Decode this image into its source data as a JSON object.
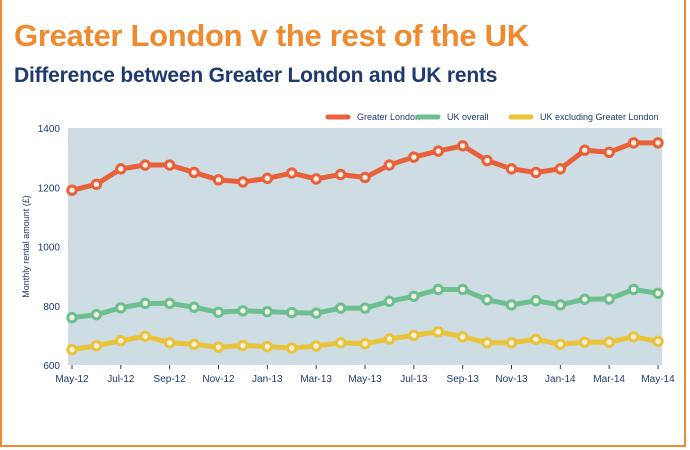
{
  "header": {
    "title": "Greater London v the rest of the UK",
    "subtitle": "Difference between Greater London and UK rents"
  },
  "colors": {
    "accent": "#ef8a2e",
    "navy": "#1f3a6e",
    "plot_bg": "#cddde3",
    "greater_london": "#e9613a",
    "uk_overall": "#6dbf90",
    "uk_excl_london": "#e9c33a"
  },
  "chart_data": {
    "type": "line",
    "title": "Difference between Greater London and UK rents",
    "xlabel": "",
    "ylabel": "Monthly rental amount (£)",
    "ylim": [
      600,
      1400
    ],
    "yticks": [
      600,
      800,
      1000,
      1200,
      1400
    ],
    "grid": false,
    "legend": "top-right",
    "x": [
      "May-12",
      "Jun-12",
      "Jul-12",
      "Aug-12",
      "Sep-12",
      "Oct-12",
      "Nov-12",
      "Dec-12",
      "Jan-13",
      "Feb-13",
      "Mar-13",
      "Apr-13",
      "May-13",
      "Jun-13",
      "Jul-13",
      "Aug-13",
      "Sep-13",
      "Oct-13",
      "Nov-13",
      "Dec-13",
      "Jan-14",
      "Feb-14",
      "Mar-14",
      "Apr-14",
      "May-14"
    ],
    "xtick_labels": [
      "May-12",
      "Jul-12",
      "Sep-12",
      "Nov-12",
      "Jan-13",
      "Mar-13",
      "May-13",
      "Jul-13",
      "Sep-13",
      "Nov-13",
      "Jan-14",
      "Mar-14",
      "May-14"
    ],
    "series": [
      {
        "name": "Greater London",
        "color": "#e9613a",
        "values": [
          1190,
          1210,
          1262,
          1275,
          1275,
          1250,
          1225,
          1218,
          1230,
          1248,
          1228,
          1243,
          1233,
          1275,
          1302,
          1322,
          1340,
          1290,
          1262,
          1250,
          1262,
          1325,
          1318,
          1350,
          1350
        ]
      },
      {
        "name": "UK overall",
        "color": "#6dbf90",
        "values": [
          760,
          770,
          793,
          808,
          808,
          795,
          778,
          783,
          780,
          777,
          775,
          792,
          792,
          815,
          832,
          855,
          855,
          820,
          803,
          817,
          803,
          822,
          823,
          855,
          842
        ]
      },
      {
        "name": "UK excluding Greater London",
        "color": "#e9c33a",
        "values": [
          652,
          665,
          682,
          697,
          675,
          670,
          660,
          666,
          662,
          657,
          664,
          675,
          672,
          688,
          700,
          712,
          695,
          675,
          675,
          687,
          670,
          677,
          677,
          695,
          680
        ]
      }
    ]
  }
}
